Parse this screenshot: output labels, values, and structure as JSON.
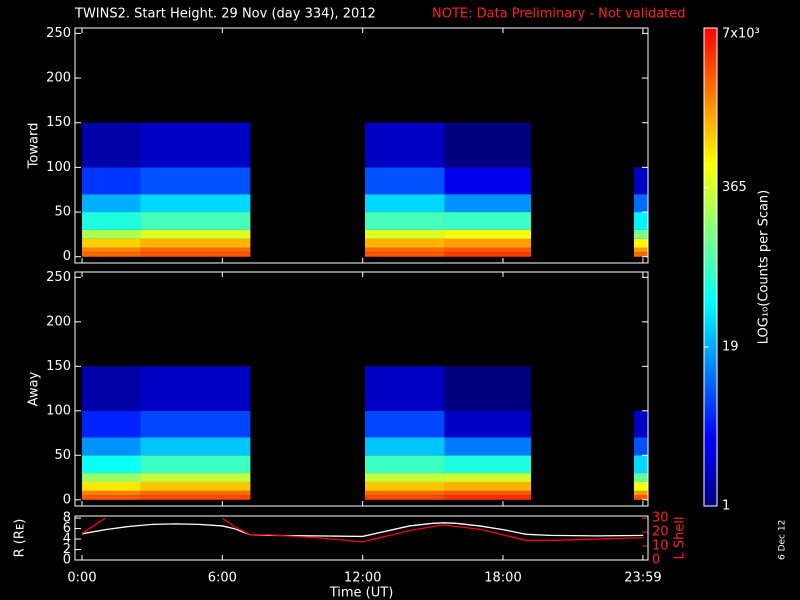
{
  "title": "TWINS2. Start Height. 29 Nov (day 334), 2012",
  "note": "NOTE: Data Preliminary - Not validated",
  "stamp": "6 Dec 12",
  "colorbar": {
    "label": "LOG₁₀(Counts per Scan)",
    "log": true,
    "lim": [
      1,
      7000
    ],
    "ticks": [
      1,
      19,
      365,
      {
        "value": 7000,
        "label": "7x10³"
      }
    ],
    "colormap": [
      "#00007f",
      "#0000ff",
      "#0080ff",
      "#00ffff",
      "#80ff80",
      "#ffff00",
      "#ff8000",
      "#ff0000"
    ]
  },
  "chart_data": [
    {
      "type": "heatmap",
      "ylabel": "Toward",
      "xlim": [
        -0.3,
        24.2
      ],
      "ylim": [
        -7,
        256
      ],
      "yticks": [
        0,
        50,
        100,
        150,
        200,
        250
      ],
      "x_bins": [
        0,
        2.5,
        7.2,
        12.1,
        15.5,
        19.2,
        23.6,
        24.2
      ],
      "y_bins": [
        0,
        5,
        10,
        20,
        30,
        50,
        70,
        100,
        150
      ],
      "values": [
        [
          2500,
          3000,
          null,
          3000,
          4000,
          null,
          2500
        ],
        [
          2000,
          2500,
          null,
          2500,
          3000,
          null,
          1500
        ],
        [
          900,
          1200,
          null,
          1200,
          1500,
          null,
          600
        ],
        [
          250,
          400,
          null,
          400,
          500,
          null,
          150
        ],
        [
          60,
          90,
          null,
          90,
          80,
          null,
          40
        ],
        [
          20,
          30,
          null,
          30,
          15,
          null,
          10
        ],
        [
          6,
          8,
          null,
          8,
          3,
          null,
          2
        ],
        [
          1.5,
          2,
          null,
          2,
          1,
          null,
          null
        ]
      ]
    },
    {
      "type": "heatmap",
      "ylabel": "Away",
      "xlim": [
        -0.3,
        24.2
      ],
      "ylim": [
        -7,
        256
      ],
      "yticks": [
        0,
        50,
        100,
        150,
        200,
        250
      ],
      "x_bins": [
        0,
        2.5,
        7.2,
        12.1,
        15.5,
        19.2,
        23.6,
        24.2
      ],
      "y_bins": [
        0,
        5,
        10,
        20,
        30,
        50,
        70,
        100,
        150
      ],
      "values": [
        [
          3000,
          3500,
          null,
          3500,
          4500,
          null,
          3000
        ],
        [
          2000,
          2500,
          null,
          2500,
          3000,
          null,
          1500
        ],
        [
          700,
          1000,
          null,
          1000,
          1200,
          null,
          500
        ],
        [
          200,
          300,
          null,
          300,
          350,
          null,
          120
        ],
        [
          50,
          80,
          null,
          80,
          60,
          null,
          30
        ],
        [
          15,
          25,
          null,
          25,
          12,
          null,
          8
        ],
        [
          5,
          7,
          null,
          7,
          2,
          null,
          2
        ],
        [
          1.5,
          2,
          null,
          2,
          1,
          null,
          null
        ]
      ]
    },
    {
      "type": "line",
      "xlabel": "Time (UT)",
      "ylabel": "R (Rᴇ)",
      "y2label": "L Shell",
      "xlim": [
        -0.3,
        24.2
      ],
      "ylim": [
        0,
        8.4
      ],
      "y2lim": [
        0,
        31.5
      ],
      "xticks": [
        {
          "value": 0,
          "label": "0:00"
        },
        {
          "value": 6,
          "label": "6:00"
        },
        {
          "value": 12,
          "label": "12:00"
        },
        {
          "value": 18,
          "label": "18:00"
        },
        {
          "value": 23.983,
          "label": "23:59"
        }
      ],
      "yticks": [
        0,
        2,
        4,
        6,
        8
      ],
      "y2ticks": [
        0,
        10,
        20,
        30
      ],
      "x": [
        0,
        1,
        2,
        3,
        4,
        5,
        6,
        6.5,
        7.2,
        8,
        10,
        12,
        13,
        14,
        15,
        15.5,
        16,
        17,
        18,
        19,
        20,
        22,
        24
      ],
      "series": [
        {
          "name": "R",
          "color": "#ffffff",
          "values": [
            5,
            5.8,
            6.4,
            6.8,
            6.9,
            6.8,
            6.5,
            6.0,
            4.8,
            4.7,
            4.6,
            4.5,
            5.5,
            6.5,
            7.0,
            7.1,
            7.0,
            6.5,
            5.8,
            4.9,
            4.7,
            4.6,
            4.7
          ]
        },
        {
          "name": "L Shell",
          "color": "#ff0000",
          "axis": "y2",
          "values": [
            19,
            30,
            null,
            null,
            null,
            null,
            30,
            24,
            18,
            18,
            16,
            13,
            17,
            21,
            24,
            25,
            24,
            22,
            18,
            14,
            14,
            15,
            16
          ]
        }
      ]
    }
  ]
}
